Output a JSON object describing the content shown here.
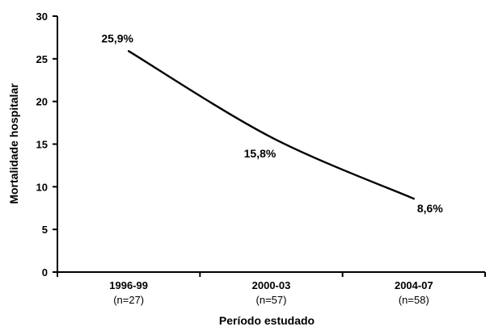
{
  "chart_data": {
    "type": "line",
    "categories": [
      "1996-99",
      "2000-03",
      "2004-07"
    ],
    "category_sublabels": [
      "(n=27)",
      "(n=57)",
      "(n=58)"
    ],
    "series": [
      {
        "values": [
          25.9,
          15.8,
          8.6
        ]
      }
    ],
    "data_labels": [
      "25,9%",
      "15,8%",
      "8,6%"
    ],
    "ylabel": "Mortalidade hospitalar",
    "xlabel": "Período estudado",
    "ylim": [
      0,
      30
    ],
    "yticks": [
      0,
      5,
      10,
      15,
      20,
      25,
      30
    ],
    "ytick_labels": [
      "0",
      "5",
      "10",
      "15",
      "20",
      "25",
      "30"
    ],
    "grid": false,
    "legend": "none",
    "line_color": "#000000"
  }
}
